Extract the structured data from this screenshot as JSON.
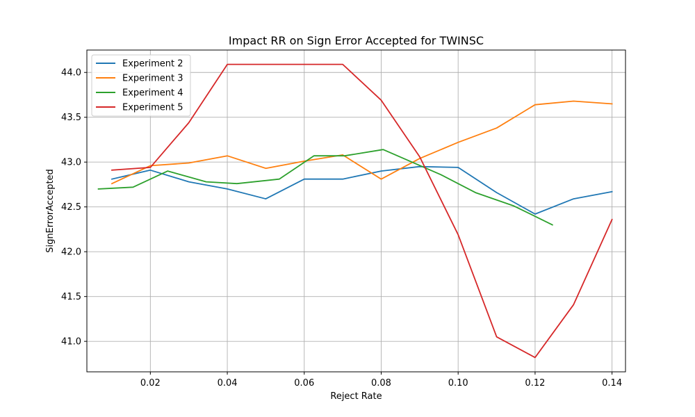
{
  "chart_data": {
    "type": "line",
    "title": "Impact RR on Sign Error Accepted for TWINSC",
    "xlabel": "Reject Rate",
    "ylabel": "SignErrorAccepted",
    "xlim": [
      0.0035,
      0.1435
    ],
    "ylim": [
      40.66,
      44.25
    ],
    "xticks": [
      "0.02",
      "0.04",
      "0.06",
      "0.08",
      "0.10",
      "0.12",
      "0.14"
    ],
    "xtick_values": [
      0.02,
      0.04,
      0.06,
      0.08,
      0.1,
      0.12,
      0.14
    ],
    "yticks": [
      "41.0",
      "41.5",
      "42.0",
      "42.5",
      "43.0",
      "43.5",
      "44.0"
    ],
    "ytick_values": [
      41.0,
      41.5,
      42.0,
      42.5,
      43.0,
      43.5,
      44.0
    ],
    "grid": true,
    "legend_position": "top-left",
    "series": [
      {
        "name": "Experiment 2",
        "color": "#1f77b4",
        "x": [
          0.01,
          0.02,
          0.03,
          0.04,
          0.05,
          0.06,
          0.07,
          0.08,
          0.09,
          0.1,
          0.11,
          0.12,
          0.13,
          0.14
        ],
        "y": [
          42.81,
          42.91,
          42.78,
          42.7,
          42.59,
          42.81,
          42.81,
          42.9,
          42.95,
          42.94,
          42.66,
          42.42,
          42.59,
          42.67
        ]
      },
      {
        "name": "Experiment 3",
        "color": "#ff7f0e",
        "x": [
          0.01,
          0.02,
          0.03,
          0.04,
          0.05,
          0.06,
          0.07,
          0.08,
          0.09,
          0.1,
          0.11,
          0.12,
          0.13,
          0.14
        ],
        "y": [
          42.76,
          42.96,
          42.99,
          43.07,
          42.93,
          43.01,
          43.08,
          42.81,
          43.04,
          43.22,
          43.38,
          43.64,
          43.68,
          43.65
        ]
      },
      {
        "name": "Experiment 4",
        "color": "#2ca02c",
        "x": [
          0.0065,
          0.0155,
          0.0245,
          0.0345,
          0.0425,
          0.0535,
          0.0625,
          0.0705,
          0.0805,
          0.0955,
          0.1045,
          0.1145,
          0.1245
        ],
        "y": [
          42.7,
          42.72,
          42.9,
          42.78,
          42.76,
          42.81,
          43.07,
          43.07,
          43.14,
          42.86,
          42.66,
          42.51,
          42.3
        ]
      },
      {
        "name": "Experiment 5",
        "color": "#d62728",
        "x": [
          0.01,
          0.02,
          0.03,
          0.04,
          0.05,
          0.06,
          0.07,
          0.08,
          0.09,
          0.1,
          0.11,
          0.12,
          0.13,
          0.14
        ],
        "y": [
          42.91,
          42.94,
          43.44,
          44.09,
          44.09,
          44.09,
          44.09,
          43.69,
          43.06,
          42.19,
          41.05,
          40.82,
          41.41,
          42.36
        ]
      }
    ]
  }
}
